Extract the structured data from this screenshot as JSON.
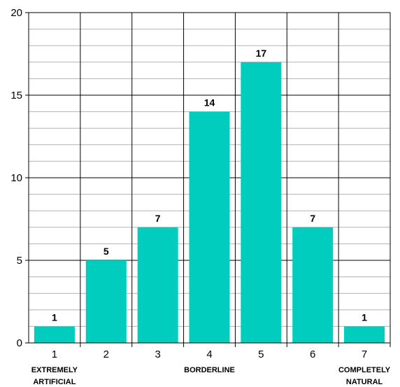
{
  "chart_data": {
    "type": "bar",
    "categories": [
      "1",
      "2",
      "3",
      "4",
      "5",
      "6",
      "7"
    ],
    "values": [
      1,
      5,
      7,
      14,
      17,
      7,
      1
    ],
    "data_labels": [
      "1",
      "5",
      "7",
      "14",
      "17",
      "7",
      "1"
    ],
    "ylim": [
      0,
      20
    ],
    "y_ticks": [
      "0",
      "5",
      "10",
      "15",
      "20"
    ],
    "grid": true,
    "bar_color": "#00CDBE",
    "scale_anchors": [
      {
        "category": "1",
        "lines": [
          "EXTREMELY",
          "ARTIFICIAL"
        ]
      },
      {
        "category": "4",
        "lines": [
          "BORDERLINE"
        ]
      },
      {
        "category": "7",
        "lines": [
          "COMPLETELY",
          "NATURAL"
        ]
      }
    ]
  }
}
